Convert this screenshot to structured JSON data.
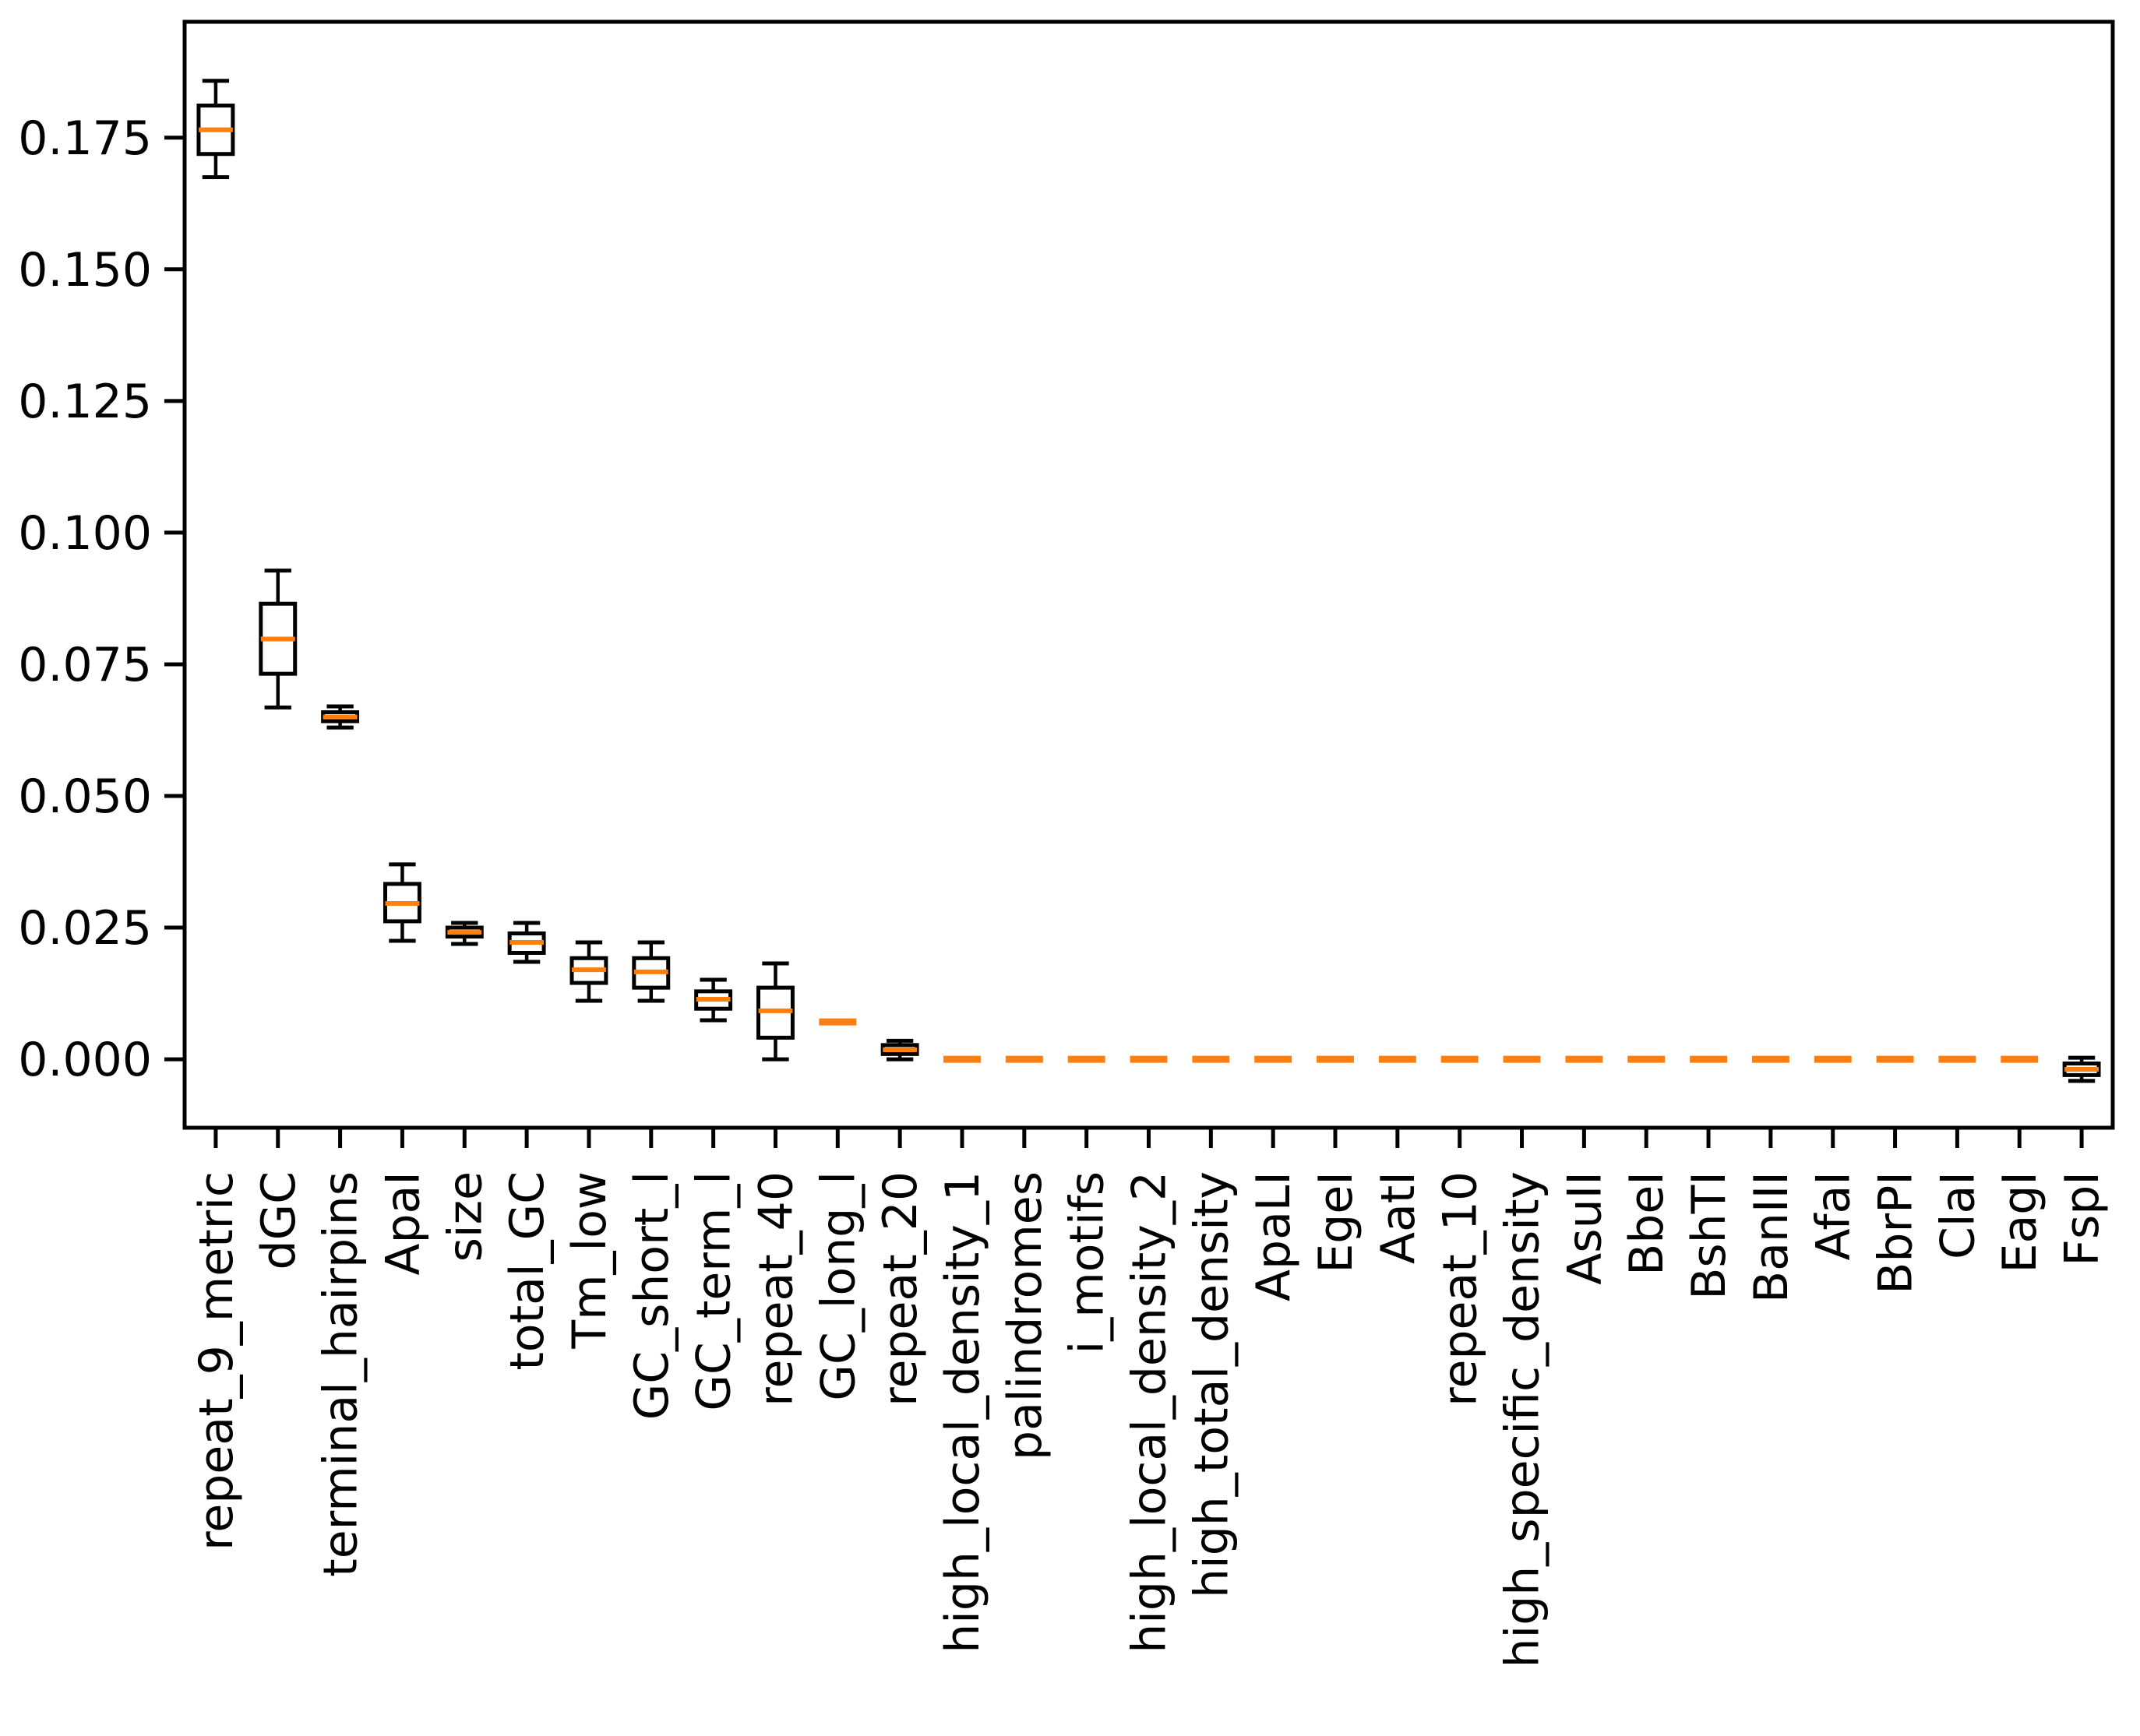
{
  "figure": {
    "background": "#ffffff",
    "axis_color": "#000000",
    "box_color": "#000000",
    "median_color": "#ff7f0e"
  },
  "chart_data": {
    "type": "boxplot",
    "title": "",
    "xlabel": "",
    "ylabel": "",
    "grid": false,
    "legend_position": "none",
    "ylim": [
      -0.013,
      0.197
    ],
    "yticks": [
      {
        "value": 0.0,
        "label": "0.000"
      },
      {
        "value": 0.025,
        "label": "0.025"
      },
      {
        "value": 0.05,
        "label": "0.050"
      },
      {
        "value": 0.075,
        "label": "0.075"
      },
      {
        "value": 0.1,
        "label": "0.100"
      },
      {
        "value": 0.125,
        "label": "0.125"
      },
      {
        "value": 0.15,
        "label": "0.150"
      },
      {
        "value": 0.175,
        "label": "0.175"
      }
    ],
    "categories": [
      "repeat_9_metric",
      "dGC",
      "terminal_hairpins",
      "ApaI",
      "size",
      "total_GC",
      "Tm_low",
      "GC_short_l",
      "GC_term_l",
      "repeat_40",
      "GC_long_l",
      "repeat_20",
      "high_local_density_1",
      "palindromes",
      "i_motifs",
      "high_local_density_2",
      "high_total_density",
      "ApaLI",
      "EgeI",
      "AatI",
      "repeat_10",
      "high_specific_density",
      "AsuII",
      "BbeI",
      "BshTI",
      "BanIII",
      "AfaI",
      "BbrPI",
      "ClaI",
      "EagI",
      "FspI"
    ],
    "boxes": [
      {
        "label": "repeat_9_metric",
        "whislo": 0.1675,
        "q1": 0.1719,
        "med": 0.1765,
        "q3": 0.1811,
        "whishi": 0.1858,
        "flat": false
      },
      {
        "label": "dGC",
        "whislo": 0.0668,
        "q1": 0.0732,
        "med": 0.0798,
        "q3": 0.0865,
        "whishi": 0.0928,
        "flat": false
      },
      {
        "label": "terminal_hairpins",
        "whislo": 0.063,
        "q1": 0.0642,
        "med": 0.065,
        "q3": 0.0659,
        "whishi": 0.067,
        "flat": false
      },
      {
        "label": "ApaI",
        "whislo": 0.0225,
        "q1": 0.0262,
        "med": 0.0296,
        "q3": 0.0333,
        "whishi": 0.037,
        "flat": false
      },
      {
        "label": "size",
        "whislo": 0.0219,
        "q1": 0.0233,
        "med": 0.0241,
        "q3": 0.025,
        "whishi": 0.0259,
        "flat": false
      },
      {
        "label": "total_GC",
        "whislo": 0.0185,
        "q1": 0.0202,
        "med": 0.0222,
        "q3": 0.0239,
        "whishi": 0.0259,
        "flat": false
      },
      {
        "label": "Tm_low",
        "whislo": 0.0111,
        "q1": 0.0145,
        "med": 0.017,
        "q3": 0.0192,
        "whishi": 0.0222,
        "flat": false
      },
      {
        "label": "GC_short_l",
        "whislo": 0.0111,
        "q1": 0.0136,
        "med": 0.0166,
        "q3": 0.0192,
        "whishi": 0.0222,
        "flat": false
      },
      {
        "label": "GC_term_l",
        "whislo": 0.0074,
        "q1": 0.0096,
        "med": 0.0114,
        "q3": 0.0129,
        "whishi": 0.0151,
        "flat": false
      },
      {
        "label": "repeat_40",
        "whislo": 0.0,
        "q1": 0.0041,
        "med": 0.0092,
        "q3": 0.0136,
        "whishi": 0.0182,
        "flat": false
      },
      {
        "label": "GC_long_l",
        "med": 0.0071,
        "flat": true
      },
      {
        "label": "repeat_20",
        "whislo": 0.0,
        "q1": 0.001,
        "med": 0.0018,
        "q3": 0.0027,
        "whishi": 0.0035,
        "flat": false
      },
      {
        "label": "high_local_density_1",
        "med": 0.0,
        "flat": true
      },
      {
        "label": "palindromes",
        "med": 0.0,
        "flat": true
      },
      {
        "label": "i_motifs",
        "med": 0.0,
        "flat": true
      },
      {
        "label": "high_local_density_2",
        "med": 0.0,
        "flat": true
      },
      {
        "label": "high_total_density",
        "med": 0.0,
        "flat": true
      },
      {
        "label": "ApaLI",
        "med": 0.0,
        "flat": true
      },
      {
        "label": "EgeI",
        "med": 0.0,
        "flat": true
      },
      {
        "label": "AatI",
        "med": 0.0,
        "flat": true
      },
      {
        "label": "repeat_10",
        "med": 0.0,
        "flat": true
      },
      {
        "label": "high_specific_density",
        "med": 0.0,
        "flat": true
      },
      {
        "label": "AsuII",
        "med": 0.0,
        "flat": true
      },
      {
        "label": "BbeI",
        "med": 0.0,
        "flat": true
      },
      {
        "label": "BshTI",
        "med": 0.0,
        "flat": true
      },
      {
        "label": "BanIII",
        "med": 0.0,
        "flat": true
      },
      {
        "label": "AfaI",
        "med": 0.0,
        "flat": true
      },
      {
        "label": "BbrPI",
        "med": 0.0,
        "flat": true
      },
      {
        "label": "ClaI",
        "med": 0.0,
        "flat": true
      },
      {
        "label": "EagI",
        "med": 0.0,
        "flat": true
      },
      {
        "label": "FspI",
        "whislo": -0.0041,
        "q1": -0.003,
        "med": -0.0019,
        "q3": -0.0008,
        "whishi": 0.0003,
        "flat": false
      }
    ]
  }
}
